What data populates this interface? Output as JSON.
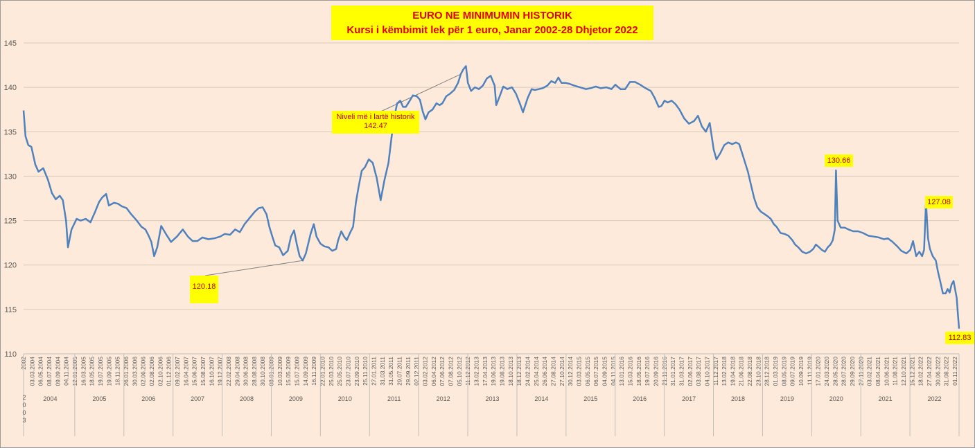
{
  "chart_data": {
    "type": "line",
    "title": "EURO NE MINIMUMIN HISTORIK",
    "subtitle": "Kursi i këmbimit lek për 1 euro, Janar 2002-28 Dhjetor 2022",
    "ylim": [
      110,
      145
    ],
    "yticks": [
      "110",
      "115",
      "120",
      "125",
      "130",
      "135",
      "140",
      "145"
    ],
    "grid": true,
    "line_color": "#4f81bd",
    "highlight_color": "#ffff00",
    "annotation_text_color": "#c00000",
    "x_date_labels": [
      "2002",
      "03.03.2004",
      "06.05.2004",
      "08.07.2004",
      "09.09.2004",
      "04.11.2004",
      "12.01.2005",
      "16.03.2005",
      "18.05.2005",
      "19.07.2005",
      "19.09.2005",
      "18.11.2005",
      "26.01.2006",
      "30.03.2006",
      "02.06.2006",
      "02.08.2006",
      "02.10.2006",
      "01.12.2006",
      "09.02.2007",
      "16.04.2007",
      "15.06.2007",
      "15.08.2007",
      "16.10.2007",
      "19.12.2007",
      "22.02.2008",
      "29.04.2008",
      "30.06.2008",
      "28.08.2008",
      "30.10.2008",
      "08.01.2009",
      "10.03.2009",
      "15.05.2009",
      "15.07.2009",
      "14.09.2009",
      "16.11.2009",
      "22.01.2010",
      "25.03.2010",
      "25.05.2010",
      "23.07.2010",
      "23.09.2010",
      "25.11.2010",
      "27.01.2011",
      "31.03.2011",
      "31.05.2011",
      "29.07.2011",
      "29.09.2011",
      "02.12.2011",
      "03.02.2012",
      "06.04.2012",
      "07.06.2012",
      "07.08.2012",
      "05.10.2012",
      "11.12.2012",
      "13.02.2013",
      "17.04.2013",
      "19.06.2013",
      "19.08.2013",
      "18.10.2013",
      "18.12.2013",
      "24.02.2014",
      "25.04.2014",
      "26.06.2014",
      "27.08.2014",
      "27.10.2014",
      "30.12.2014",
      "03.03.2015",
      "06.05.2015",
      "06.07.2015",
      "04.09.2015",
      "04.11.2015",
      "13.01.2016",
      "15.03.2016",
      "18.05.2016",
      "19.07.2016",
      "20.09.2016",
      "21.11.2016",
      "31.01.2017",
      "31.03.2017",
      "02.06.2017",
      "03.08.2017",
      "04.10.2017",
      "11.12.2017",
      "13.02.2018",
      "19.04.2018",
      "21.06.2018",
      "22.08.2018",
      "23.10.2018",
      "28.12.2018",
      "01.03.2019",
      "08.05.2019",
      "09.07.2019",
      "10.09.2019",
      "11.11.2019",
      "17.01.2020",
      "24.03.2020",
      "28.05.2020",
      "28.07.2020",
      "29.09.2020",
      "27.11.2020",
      "03.02.2021",
      "08.04.2021",
      "10.06.2021",
      "11.08.2021",
      "12.10.2021",
      "15.12.2021",
      "18.02.2022",
      "27.04.2022",
      "30.06.2022",
      "31.08.2022",
      "01.11.2022"
    ],
    "x_year_labels": [
      "2004",
      "2005",
      "2006",
      "2007",
      "2008",
      "2009",
      "2010",
      "2011",
      "2012",
      "2013",
      "2014",
      "2015",
      "2016",
      "2017",
      "2018",
      "2019",
      "2020",
      "2021",
      "2022"
    ],
    "x_stacked_label": [
      "2",
      "0",
      "0",
      "3"
    ],
    "series": [
      {
        "values": [
          [
            2002.0,
            137.4
          ],
          [
            2002.05,
            134.5
          ],
          [
            2002.12,
            133.5
          ],
          [
            2002.2,
            133.3
          ],
          [
            2002.3,
            131.3
          ],
          [
            2002.38,
            130.5
          ],
          [
            2002.5,
            130.9
          ],
          [
            2002.62,
            129.6
          ],
          [
            2002.72,
            128.1
          ],
          [
            2002.82,
            127.4
          ],
          [
            2002.92,
            127.8
          ],
          [
            2003.0,
            127.3
          ],
          [
            2003.08,
            125.0
          ],
          [
            2003.13,
            122.0
          ],
          [
            2003.22,
            124.0
          ],
          [
            2003.35,
            125.2
          ],
          [
            2003.45,
            125.0
          ],
          [
            2003.58,
            125.2
          ],
          [
            2003.7,
            124.8
          ],
          [
            2003.82,
            126.0
          ],
          [
            2003.92,
            127.1
          ],
          [
            2004.0,
            127.6
          ],
          [
            2004.1,
            128.0
          ],
          [
            2004.17,
            126.7
          ],
          [
            2004.3,
            127.0
          ],
          [
            2004.4,
            126.9
          ],
          [
            2004.5,
            126.6
          ],
          [
            2004.62,
            126.4
          ],
          [
            2004.72,
            125.8
          ],
          [
            2004.88,
            125.0
          ],
          [
            2005.0,
            124.3
          ],
          [
            2005.1,
            124.0
          ],
          [
            2005.18,
            123.3
          ],
          [
            2005.25,
            122.6
          ],
          [
            2005.32,
            121.0
          ],
          [
            2005.4,
            122.0
          ],
          [
            2005.5,
            124.4
          ],
          [
            2005.62,
            123.5
          ],
          [
            2005.75,
            122.6
          ],
          [
            2005.9,
            123.2
          ],
          [
            2006.05,
            124.0
          ],
          [
            2006.18,
            123.2
          ],
          [
            2006.3,
            122.7
          ],
          [
            2006.42,
            122.7
          ],
          [
            2006.55,
            123.1
          ],
          [
            2006.7,
            122.9
          ],
          [
            2006.85,
            123.0
          ],
          [
            2007.0,
            123.2
          ],
          [
            2007.12,
            123.5
          ],
          [
            2007.25,
            123.4
          ],
          [
            2007.38,
            124.0
          ],
          [
            2007.5,
            123.7
          ],
          [
            2007.62,
            124.6
          ],
          [
            2007.75,
            125.3
          ],
          [
            2007.88,
            126.0
          ],
          [
            2007.98,
            126.4
          ],
          [
            2008.08,
            126.5
          ],
          [
            2008.18,
            125.7
          ],
          [
            2008.25,
            124.3
          ],
          [
            2008.32,
            123.3
          ],
          [
            2008.4,
            122.2
          ],
          [
            2008.5,
            122.0
          ],
          [
            2008.6,
            121.1
          ],
          [
            2008.72,
            121.6
          ],
          [
            2008.8,
            123.2
          ],
          [
            2008.88,
            123.9
          ],
          [
            2008.95,
            122.3
          ],
          [
            2009.02,
            121.0
          ],
          [
            2009.1,
            120.5
          ],
          [
            2009.18,
            121.3
          ],
          [
            2009.25,
            122.6
          ],
          [
            2009.3,
            123.5
          ],
          [
            2009.38,
            124.6
          ],
          [
            2009.45,
            123.2
          ],
          [
            2009.55,
            122.4
          ],
          [
            2009.65,
            122.1
          ],
          [
            2009.75,
            122.0
          ],
          [
            2009.85,
            121.6
          ],
          [
            2009.95,
            121.8
          ],
          [
            2010.0,
            122.8
          ],
          [
            2010.08,
            123.8
          ],
          [
            2010.15,
            123.2
          ],
          [
            2010.22,
            122.8
          ],
          [
            2010.3,
            123.6
          ],
          [
            2010.38,
            124.3
          ],
          [
            2010.45,
            127.0
          ],
          [
            2010.52,
            128.8
          ],
          [
            2010.6,
            130.6
          ],
          [
            2010.68,
            131.0
          ],
          [
            2010.78,
            131.9
          ],
          [
            2010.88,
            131.5
          ],
          [
            2010.98,
            129.8
          ],
          [
            2011.08,
            127.3
          ],
          [
            2011.18,
            129.6
          ],
          [
            2011.28,
            131.5
          ],
          [
            2011.35,
            134.1
          ],
          [
            2011.42,
            136.5
          ],
          [
            2011.5,
            138.2
          ],
          [
            2011.58,
            138.5
          ],
          [
            2011.65,
            137.8
          ],
          [
            2011.72,
            137.8
          ],
          [
            2011.82,
            138.5
          ],
          [
            2011.9,
            139.1
          ],
          [
            2012.0,
            139.0
          ],
          [
            2012.08,
            138.6
          ],
          [
            2012.15,
            137.3
          ],
          [
            2012.22,
            136.4
          ],
          [
            2012.3,
            137.2
          ],
          [
            2012.4,
            137.5
          ],
          [
            2012.5,
            138.2
          ],
          [
            2012.58,
            138.0
          ],
          [
            2012.65,
            138.2
          ],
          [
            2012.75,
            139.0
          ],
          [
            2012.85,
            139.3
          ],
          [
            2012.95,
            139.7
          ],
          [
            2013.05,
            140.5
          ],
          [
            2013.12,
            141.5
          ],
          [
            2013.18,
            142.0
          ],
          [
            2013.25,
            142.4
          ],
          [
            2013.3,
            140.5
          ],
          [
            2013.38,
            139.6
          ],
          [
            2013.48,
            140.0
          ],
          [
            2013.58,
            139.8
          ],
          [
            2013.68,
            140.2
          ],
          [
            2013.78,
            141.0
          ],
          [
            2013.88,
            141.3
          ],
          [
            2013.98,
            140.2
          ],
          [
            2014.02,
            138.0
          ],
          [
            2014.1,
            138.9
          ],
          [
            2014.2,
            140.1
          ],
          [
            2014.3,
            139.8
          ],
          [
            2014.42,
            140.0
          ],
          [
            2014.52,
            139.3
          ],
          [
            2014.62,
            138.2
          ],
          [
            2014.7,
            137.2
          ],
          [
            2014.82,
            138.8
          ],
          [
            2014.92,
            139.8
          ],
          [
            2015.0,
            139.7
          ],
          [
            2015.1,
            139.8
          ],
          [
            2015.2,
            139.9
          ],
          [
            2015.32,
            140.2
          ],
          [
            2015.42,
            140.7
          ],
          [
            2015.52,
            140.5
          ],
          [
            2015.6,
            141.1
          ],
          [
            2015.68,
            140.5
          ],
          [
            2015.78,
            140.5
          ],
          [
            2015.88,
            140.4
          ],
          [
            2016.0,
            140.2
          ],
          [
            2016.15,
            140.0
          ],
          [
            2016.3,
            139.8
          ],
          [
            2016.42,
            139.9
          ],
          [
            2016.55,
            140.1
          ],
          [
            2016.68,
            139.9
          ],
          [
            2016.82,
            140.0
          ],
          [
            2016.95,
            139.8
          ],
          [
            2017.05,
            140.3
          ],
          [
            2017.18,
            139.8
          ],
          [
            2017.3,
            139.8
          ],
          [
            2017.42,
            140.6
          ],
          [
            2017.55,
            140.6
          ],
          [
            2017.68,
            140.3
          ],
          [
            2017.82,
            139.9
          ],
          [
            2017.95,
            139.6
          ],
          [
            2018.05,
            138.8
          ],
          [
            2018.15,
            137.8
          ],
          [
            2018.22,
            137.9
          ],
          [
            2018.3,
            138.5
          ],
          [
            2018.38,
            138.3
          ],
          [
            2018.48,
            138.5
          ],
          [
            2018.58,
            138.1
          ],
          [
            2018.68,
            137.5
          ],
          [
            2018.8,
            136.5
          ],
          [
            2018.92,
            135.9
          ],
          [
            2019.05,
            136.2
          ],
          [
            2019.15,
            136.8
          ],
          [
            2019.25,
            135.6
          ],
          [
            2019.35,
            135.0
          ],
          [
            2019.45,
            136.0
          ],
          [
            2019.55,
            133.0
          ],
          [
            2019.62,
            131.9
          ],
          [
            2019.72,
            132.6
          ],
          [
            2019.82,
            133.5
          ],
          [
            2019.92,
            133.8
          ],
          [
            2020.02,
            133.6
          ],
          [
            2020.12,
            133.8
          ],
          [
            2020.2,
            133.6
          ],
          [
            2020.28,
            132.5
          ],
          [
            2020.35,
            131.5
          ],
          [
            2020.42,
            130.5
          ],
          [
            2020.5,
            129.0
          ],
          [
            2020.58,
            127.5
          ],
          [
            2020.66,
            126.5
          ],
          [
            2020.75,
            126.0
          ],
          [
            2020.82,
            125.8
          ],
          [
            2020.92,
            125.5
          ],
          [
            2021.0,
            125.2
          ],
          [
            2021.08,
            124.6
          ],
          [
            2021.15,
            124.3
          ],
          [
            2021.25,
            123.6
          ],
          [
            2021.35,
            123.5
          ],
          [
            2021.45,
            123.3
          ],
          [
            2021.55,
            122.8
          ],
          [
            2021.62,
            122.3
          ],
          [
            2021.7,
            122.0
          ],
          [
            2021.8,
            121.5
          ],
          [
            2021.9,
            121.3
          ],
          [
            2022.0,
            121.5
          ],
          [
            2022.08,
            121.8
          ],
          [
            2022.15,
            122.3
          ],
          [
            2022.23,
            122.0
          ],
          [
            2022.3,
            121.7
          ],
          [
            2022.38,
            121.5
          ],
          [
            2022.45,
            122.0
          ],
          [
            2022.52,
            122.3
          ],
          [
            2022.58,
            122.8
          ],
          [
            2022.63,
            124.0
          ],
          [
            2022.66,
            130.66
          ],
          [
            2022.7,
            125.0
          ],
          [
            2022.78,
            124.2
          ],
          [
            2022.88,
            124.2
          ],
          [
            2022.98,
            124.0
          ],
          [
            2023.1,
            123.8
          ],
          [
            2023.22,
            123.8
          ],
          [
            2023.35,
            123.6
          ],
          [
            2023.48,
            123.3
          ],
          [
            2023.62,
            123.2
          ],
          [
            2023.75,
            123.1
          ],
          [
            2023.88,
            122.9
          ],
          [
            2023.98,
            123.0
          ],
          [
            2024.1,
            122.6
          ],
          [
            2024.22,
            122.1
          ],
          [
            2024.32,
            121.6
          ],
          [
            2024.45,
            121.3
          ],
          [
            2024.55,
            121.7
          ],
          [
            2024.62,
            122.7
          ],
          [
            2024.7,
            121.0
          ],
          [
            2024.78,
            121.5
          ],
          [
            2024.85,
            121.0
          ],
          [
            2024.9,
            121.7
          ],
          [
            2024.95,
            127.08
          ],
          [
            2025.0,
            123.0
          ],
          [
            2025.05,
            121.8
          ],
          [
            2025.12,
            121.0
          ],
          [
            2025.2,
            120.5
          ],
          [
            2025.25,
            119.3
          ],
          [
            2025.32,
            118.0
          ],
          [
            2025.38,
            116.8
          ],
          [
            2025.45,
            116.8
          ],
          [
            2025.5,
            117.3
          ],
          [
            2025.55,
            116.9
          ],
          [
            2025.6,
            117.8
          ],
          [
            2025.65,
            118.2
          ],
          [
            2025.7,
            117.0
          ],
          [
            2025.73,
            116.3
          ],
          [
            2025.76,
            114.5
          ],
          [
            2025.79,
            112.83
          ]
        ]
      }
    ],
    "annotations": [
      {
        "lines": [
          "Niveli më i lartë historik",
          "142.47"
        ]
      },
      {
        "lines": [
          "120.18"
        ]
      },
      {
        "lines": [
          "130.66"
        ]
      },
      {
        "lines": [
          "127.08"
        ]
      },
      {
        "lines": [
          "112.83"
        ]
      }
    ]
  }
}
